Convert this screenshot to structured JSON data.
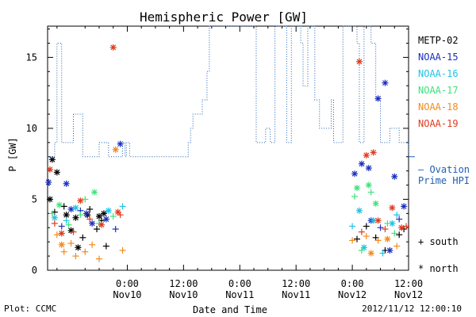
{
  "chart_data": {
    "type": "scatter",
    "title": "Hemispheric Power [GW]",
    "xlabel": "Date and Time",
    "ylabel": "P [GW]",
    "ylim": [
      0,
      17.2
    ],
    "y_ticks": [
      0,
      5,
      10,
      15
    ],
    "x_range_hours": [
      -17,
      60
    ],
    "x_ticks": [
      {
        "hour": 0,
        "time": "0:00",
        "date": "Nov10"
      },
      {
        "hour": 12,
        "time": "12:00",
        "date": "Nov10"
      },
      {
        "hour": 24,
        "time": "0:00",
        "date": "Nov11"
      },
      {
        "hour": 36,
        "time": "12:00",
        "date": "Nov11"
      },
      {
        "hour": 48,
        "time": "0:00",
        "date": "Nov12"
      },
      {
        "hour": 60,
        "time": "12:00",
        "date": "Nov12"
      }
    ],
    "grid": false,
    "legend_position": "right",
    "ovation": {
      "name": "Ovation Prime HPI",
      "label_line1": "– Ovation",
      "label_line2": "Prime HPI",
      "color": "#1f5fb4",
      "steps": [
        [
          -17,
          8
        ],
        [
          -15.5,
          9
        ],
        [
          -15,
          16
        ],
        [
          -14,
          9
        ],
        [
          -11.5,
          11
        ],
        [
          -9.5,
          8
        ],
        [
          -6,
          9
        ],
        [
          -4,
          8
        ],
        [
          -1,
          9
        ],
        [
          -0.5,
          8
        ],
        [
          -0.2,
          9
        ],
        [
          0.5,
          8
        ],
        [
          8,
          8
        ],
        [
          13,
          9
        ],
        [
          13.5,
          10
        ],
        [
          14,
          11
        ],
        [
          16,
          12
        ],
        [
          17,
          14
        ],
        [
          17.5,
          17.2
        ],
        [
          19,
          17.2
        ],
        [
          24,
          17.2
        ],
        [
          27.5,
          9
        ],
        [
          29.5,
          10
        ],
        [
          30.5,
          9
        ],
        [
          31.5,
          17.2
        ],
        [
          33,
          17.2
        ],
        [
          34,
          9
        ],
        [
          35,
          17.2
        ],
        [
          37,
          16
        ],
        [
          37.5,
          13
        ],
        [
          38.5,
          17.2
        ],
        [
          40,
          12
        ],
        [
          41,
          10
        ],
        [
          43.5,
          12
        ],
        [
          44,
          9
        ],
        [
          46,
          17.2
        ],
        [
          48.5,
          17.2
        ],
        [
          49,
          16
        ],
        [
          49.5,
          9
        ],
        [
          50.5,
          17.2
        ],
        [
          52,
          16
        ],
        [
          53,
          12
        ],
        [
          54,
          9
        ],
        [
          56,
          10
        ],
        [
          58,
          9
        ],
        [
          60,
          8
        ]
      ]
    },
    "series": [
      {
        "name": "METP-02",
        "color": "#000000",
        "points": [
          {
            "x": -16.5,
            "y": 5.0,
            "hemi": "north"
          },
          {
            "x": -15,
            "y": 6.9,
            "hemi": "north"
          },
          {
            "x": -16,
            "y": 7.8,
            "hemi": "north"
          },
          {
            "x": -13,
            "y": 3.9,
            "hemi": "north"
          },
          {
            "x": -11,
            "y": 3.7,
            "hemi": "north"
          },
          {
            "x": -10.5,
            "y": 1.6,
            "hemi": "north"
          },
          {
            "x": -8.5,
            "y": 3.9,
            "hemi": "north"
          },
          {
            "x": -6,
            "y": 3.8,
            "hemi": "north"
          },
          {
            "x": -5,
            "y": 4.0,
            "hemi": "north"
          },
          {
            "x": -12,
            "y": 2.8,
            "hemi": "north"
          },
          {
            "x": -15.5,
            "y": 4.1,
            "hemi": "south"
          },
          {
            "x": -13.5,
            "y": 4.5,
            "hemi": "south"
          },
          {
            "x": -9.5,
            "y": 2.3,
            "hemi": "south"
          },
          {
            "x": -8,
            "y": 4.3,
            "hemi": "south"
          },
          {
            "x": -6.5,
            "y": 2.9,
            "hemi": "south"
          },
          {
            "x": -4.5,
            "y": 1.7,
            "hemi": "south"
          },
          {
            "x": -5.5,
            "y": 3.5,
            "hemi": "south"
          },
          {
            "x": 49,
            "y": 2.2,
            "hemi": "south"
          },
          {
            "x": 51,
            "y": 3.1,
            "hemi": "south"
          },
          {
            "x": 53,
            "y": 2.3,
            "hemi": "south"
          },
          {
            "x": 58,
            "y": 2.5,
            "hemi": "south"
          },
          {
            "x": 59,
            "y": 2.9,
            "hemi": "south"
          },
          {
            "x": 55,
            "y": 1.4,
            "hemi": "south"
          }
        ]
      },
      {
        "name": "NOAA-15",
        "color": "#1a2fbf",
        "points": [
          {
            "x": -16.8,
            "y": 6.2,
            "hemi": "north"
          },
          {
            "x": -13,
            "y": 6.1,
            "hemi": "north"
          },
          {
            "x": -1.5,
            "y": 8.9,
            "hemi": "north"
          },
          {
            "x": -12,
            "y": 4.3,
            "hemi": "north"
          },
          {
            "x": -8.7,
            "y": 4.0,
            "hemi": "north"
          },
          {
            "x": -7.5,
            "y": 3.3,
            "hemi": "north"
          },
          {
            "x": -4.5,
            "y": 3.6,
            "hemi": "north"
          },
          {
            "x": 48.5,
            "y": 6.8,
            "hemi": "north"
          },
          {
            "x": 50,
            "y": 7.5,
            "hemi": "north"
          },
          {
            "x": 51.5,
            "y": 7.2,
            "hemi": "north"
          },
          {
            "x": 53.5,
            "y": 12.1,
            "hemi": "north"
          },
          {
            "x": 55,
            "y": 13.2,
            "hemi": "north"
          },
          {
            "x": 57,
            "y": 6.6,
            "hemi": "north"
          },
          {
            "x": 59,
            "y": 4.5,
            "hemi": "north"
          },
          {
            "x": 52,
            "y": 3.5,
            "hemi": "north"
          },
          {
            "x": 56,
            "y": 1.4,
            "hemi": "north"
          },
          {
            "x": -14,
            "y": 3.1,
            "hemi": "south"
          },
          {
            "x": -10,
            "y": 4.2,
            "hemi": "south"
          },
          {
            "x": -2.5,
            "y": 2.9,
            "hemi": "south"
          },
          {
            "x": 54,
            "y": 3.0,
            "hemi": "south"
          },
          {
            "x": 58,
            "y": 3.6,
            "hemi": "south"
          }
        ]
      },
      {
        "name": "NOAA-16",
        "color": "#1ec3e6",
        "points": [
          {
            "x": -15.5,
            "y": 3.7,
            "hemi": "north"
          },
          {
            "x": -11,
            "y": 4.4,
            "hemi": "north"
          },
          {
            "x": -4,
            "y": 4.2,
            "hemi": "north"
          },
          {
            "x": 49.5,
            "y": 4.2,
            "hemi": "north"
          },
          {
            "x": 50.5,
            "y": 1.6,
            "hemi": "north"
          },
          {
            "x": 52.5,
            "y": 3.5,
            "hemi": "north"
          },
          {
            "x": 56.5,
            "y": 3.3,
            "hemi": "north"
          },
          {
            "x": -13,
            "y": 3.5,
            "hemi": "south"
          },
          {
            "x": -1,
            "y": 4.5,
            "hemi": "south"
          },
          {
            "x": 48,
            "y": 3.1,
            "hemi": "south"
          },
          {
            "x": 54.5,
            "y": 1.2,
            "hemi": "south"
          },
          {
            "x": 57.5,
            "y": 3.9,
            "hemi": "south"
          }
        ]
      },
      {
        "name": "NOAA-17",
        "color": "#3ee27a",
        "points": [
          {
            "x": -14.5,
            "y": 4.6,
            "hemi": "north"
          },
          {
            "x": -7,
            "y": 5.5,
            "hemi": "north"
          },
          {
            "x": 49,
            "y": 5.8,
            "hemi": "north"
          },
          {
            "x": 51.5,
            "y": 6.0,
            "hemi": "north"
          },
          {
            "x": 53,
            "y": 4.7,
            "hemi": "north"
          },
          {
            "x": -16,
            "y": 4.0,
            "hemi": "south"
          },
          {
            "x": -12.5,
            "y": 3.2,
            "hemi": "south"
          },
          {
            "x": -10,
            "y": 3.9,
            "hemi": "south"
          },
          {
            "x": -9,
            "y": 5.0,
            "hemi": "south"
          },
          {
            "x": -6,
            "y": 3.3,
            "hemi": "south"
          },
          {
            "x": -3,
            "y": 3.8,
            "hemi": "south"
          },
          {
            "x": 48.5,
            "y": 5.2,
            "hemi": "south"
          },
          {
            "x": 50,
            "y": 1.4,
            "hemi": "south"
          },
          {
            "x": 52,
            "y": 5.5,
            "hemi": "south"
          },
          {
            "x": 55.5,
            "y": 3.3,
            "hemi": "south"
          },
          {
            "x": 57,
            "y": 2.6,
            "hemi": "south"
          }
        ]
      },
      {
        "name": "NOAA-18",
        "color": "#f08a1e",
        "points": [
          {
            "x": -14,
            "y": 1.8,
            "hemi": "north"
          },
          {
            "x": -2.5,
            "y": 8.5,
            "hemi": "north"
          },
          {
            "x": 52,
            "y": 1.2,
            "hemi": "north"
          },
          {
            "x": 55.5,
            "y": 2.2,
            "hemi": "north"
          },
          {
            "x": -15,
            "y": 2.5,
            "hemi": "south"
          },
          {
            "x": -13.5,
            "y": 1.3,
            "hemi": "south"
          },
          {
            "x": -12,
            "y": 1.9,
            "hemi": "south"
          },
          {
            "x": -11,
            "y": 1.0,
            "hemi": "south"
          },
          {
            "x": -9,
            "y": 1.3,
            "hemi": "south"
          },
          {
            "x": -7.5,
            "y": 1.8,
            "hemi": "south"
          },
          {
            "x": -6,
            "y": 0.8,
            "hemi": "south"
          },
          {
            "x": -1,
            "y": 1.4,
            "hemi": "south"
          },
          {
            "x": 48,
            "y": 2.1,
            "hemi": "south"
          },
          {
            "x": 51,
            "y": 2.4,
            "hemi": "south"
          },
          {
            "x": 53.5,
            "y": 2.1,
            "hemi": "south"
          },
          {
            "x": 57.5,
            "y": 1.7,
            "hemi": "south"
          }
        ]
      },
      {
        "name": "NOAA-19",
        "color": "#e03a1e",
        "points": [
          {
            "x": -3,
            "y": 15.7,
            "hemi": "north"
          },
          {
            "x": -16.5,
            "y": 7.1,
            "hemi": "north"
          },
          {
            "x": -10,
            "y": 4.9,
            "hemi": "north"
          },
          {
            "x": -5.5,
            "y": 3.2,
            "hemi": "north"
          },
          {
            "x": -2,
            "y": 4.1,
            "hemi": "north"
          },
          {
            "x": -14,
            "y": 2.6,
            "hemi": "north"
          },
          {
            "x": 49.5,
            "y": 14.7,
            "hemi": "north"
          },
          {
            "x": 51,
            "y": 8.1,
            "hemi": "north"
          },
          {
            "x": 52.5,
            "y": 8.3,
            "hemi": "north"
          },
          {
            "x": 53.5,
            "y": 3.5,
            "hemi": "north"
          },
          {
            "x": 56.5,
            "y": 4.4,
            "hemi": "north"
          },
          {
            "x": 58.5,
            "y": 3.0,
            "hemi": "north"
          },
          {
            "x": -15.5,
            "y": 3.3,
            "hemi": "south"
          },
          {
            "x": -11.5,
            "y": 2.7,
            "hemi": "south"
          },
          {
            "x": -8,
            "y": 3.6,
            "hemi": "south"
          },
          {
            "x": -1.5,
            "y": 3.9,
            "hemi": "south"
          },
          {
            "x": 50,
            "y": 2.7,
            "hemi": "south"
          },
          {
            "x": 55,
            "y": 2.9,
            "hemi": "south"
          },
          {
            "x": 59.5,
            "y": 3.1,
            "hemi": "south"
          }
        ]
      }
    ],
    "marker_key": {
      "south_label": "+ south",
      "north_label": "* north"
    }
  },
  "footer": {
    "plot_credit": "Plot: CCMC",
    "timestamp": "2012/11/12 12:00:10"
  }
}
